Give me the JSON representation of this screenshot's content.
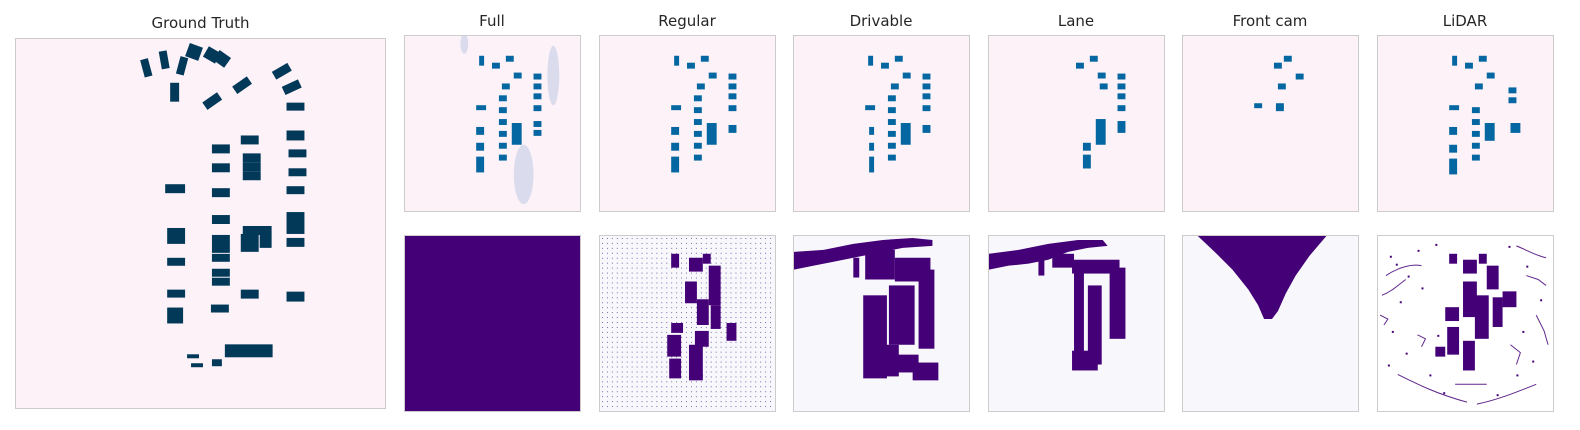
{
  "titles": {
    "ground_truth": "Ground Truth",
    "full": "Full",
    "regular": "Regular",
    "drivable": "Drivable",
    "lane": "Lane",
    "front_cam": "Front cam",
    "lidar": "LiDAR"
  },
  "colors": {
    "panel_bg_top": "#fdf2f8",
    "car_dark": "#023858",
    "car_mid": "#0567a1",
    "car_light": "#3690c0",
    "mask_purple": "#440077",
    "mask_bg": "#f8f8fc",
    "panel_border": "#cccccc"
  }
}
